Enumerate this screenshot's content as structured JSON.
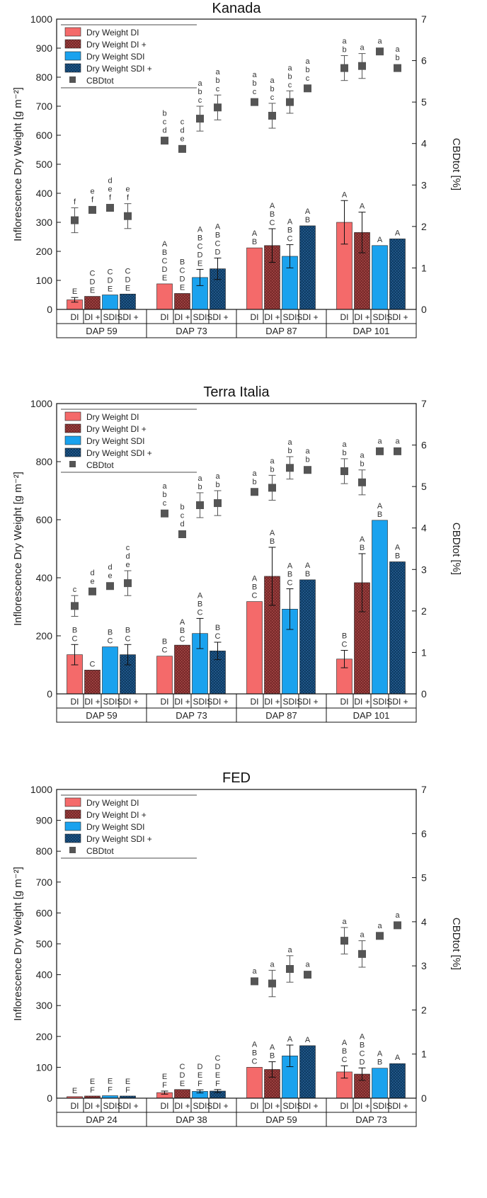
{
  "chart_data": [
    {
      "type": "bar",
      "title": "Kanada",
      "ylabel": "Inflorescence Dry Weight [g m⁻²]",
      "y2label": "CBDtot [%]",
      "ylim": [
        0,
        1000
      ],
      "y2lim": [
        0,
        7
      ],
      "yticks": [
        "0",
        "100",
        "200",
        "300",
        "400",
        "500",
        "600",
        "700",
        "800",
        "900",
        "1000"
      ],
      "y2ticks": [
        "0",
        "1",
        "2",
        "3",
        "4",
        "5",
        "6",
        "7"
      ],
      "categories": [
        "DI",
        "DI +",
        "SDI",
        "SDI +"
      ],
      "groups": [
        "DAP 59",
        "DAP 73",
        "DAP 87",
        "DAP 101"
      ],
      "legend_position": "top-left",
      "legend": [
        "Dry Weight DI",
        "Dry Weight DI +",
        "Dry Weight SDI",
        "Dry Weight SDI +",
        "CBDtot"
      ],
      "series": [
        {
          "name": "Dry Weight DI",
          "color": "#f46a6a",
          "values": [
            33,
            88,
            212,
            300
          ],
          "errors": [
            8,
            0,
            0,
            75
          ]
        },
        {
          "name": "Dry Weight DI +",
          "color": "#7a2a2a",
          "values": [
            45,
            55,
            220,
            265
          ],
          "errors": [
            0,
            0,
            58,
            70
          ]
        },
        {
          "name": "Dry Weight SDI",
          "color": "#1aa2ee",
          "values": [
            50,
            110,
            183,
            220
          ],
          "errors": [
            0,
            28,
            40,
            0
          ]
        },
        {
          "name": "Dry Weight SDI +",
          "color": "#0f3d66",
          "values": [
            53,
            140,
            288,
            243
          ],
          "errors": [
            0,
            37,
            0,
            0
          ]
        }
      ],
      "cbd": {
        "name": "CBDtot",
        "color": "#555555",
        "values": [
          [
            2.15,
            2.4,
            2.45,
            2.25
          ],
          [
            4.07,
            3.87,
            4.6,
            4.87
          ],
          [
            5.0,
            4.67,
            5.0,
            5.33
          ],
          [
            5.82,
            5.87,
            6.22,
            5.82
          ]
        ],
        "errors": [
          [
            0.3,
            0,
            0,
            0.3
          ],
          [
            0,
            0,
            0.3,
            0.3
          ],
          [
            0,
            0.3,
            0.27,
            0
          ],
          [
            0.3,
            0.3,
            0,
            0
          ]
        ]
      },
      "bar_letters": [
        [
          "E",
          "C D E",
          "C D E",
          "C D E"
        ],
        [
          "A B C D E",
          "B C D E",
          "A B C D E",
          "A B C D"
        ],
        [
          "A B",
          "A B C",
          "A B C",
          "A B"
        ],
        [
          "A",
          "A",
          "A",
          "A"
        ]
      ],
      "cbd_letters": [
        [
          "f",
          "e f",
          "d e f",
          "e f"
        ],
        [
          "b c d",
          "c d e",
          "a b c",
          "a b c"
        ],
        [
          "a b c",
          "a b c",
          "a b c",
          "a b c"
        ],
        [
          "a b",
          "a",
          "a",
          "a b"
        ]
      ]
    },
    {
      "type": "bar",
      "title": "Terra Italia",
      "ylabel": "Inflorescence Dry Weight [g m⁻²]",
      "y2label": "CBDtot [%]",
      "ylim": [
        0,
        1000
      ],
      "y2lim": [
        0,
        7
      ],
      "yticks": [
        "0",
        "200",
        "400",
        "600",
        "800",
        "1000"
      ],
      "y2ticks": [
        "0",
        "1",
        "2",
        "3",
        "4",
        "5",
        "6",
        "7"
      ],
      "categories": [
        "DI",
        "DI +",
        "SDI",
        "SDI +"
      ],
      "groups": [
        "DAP 59",
        "DAP 73",
        "DAP 87",
        "DAP 101"
      ],
      "legend_position": "top-left",
      "legend": [
        "Dry Weight DI",
        "Dry Weight DI +",
        "Dry Weight SDI",
        "Dry Weight SDI +",
        "CBDtot"
      ],
      "series": [
        {
          "name": "Dry Weight DI",
          "color": "#f46a6a",
          "values": [
            135,
            130,
            318,
            120
          ],
          "errors": [
            35,
            0,
            0,
            30
          ]
        },
        {
          "name": "Dry Weight DI +",
          "color": "#7a2a2a",
          "values": [
            82,
            168,
            405,
            383
          ],
          "errors": [
            0,
            0,
            100,
            100
          ]
        },
        {
          "name": "Dry Weight SDI",
          "color": "#1aa2ee",
          "values": [
            162,
            208,
            292,
            598
          ],
          "errors": [
            0,
            52,
            70,
            0
          ]
        },
        {
          "name": "Dry Weight SDI +",
          "color": "#0f3d66",
          "values": [
            135,
            148,
            393,
            455
          ],
          "errors": [
            35,
            30,
            0,
            0
          ]
        }
      ],
      "cbd": {
        "name": "CBDtot",
        "color": "#555555",
        "values": [
          [
            2.12,
            2.47,
            2.6,
            2.67
          ],
          [
            4.35,
            3.85,
            4.55,
            4.6
          ],
          [
            4.87,
            4.97,
            5.45,
            5.4
          ],
          [
            5.37,
            5.1,
            5.85,
            5.85
          ]
        ],
        "errors": [
          [
            0.25,
            0,
            0,
            0.3
          ],
          [
            0,
            0,
            0.3,
            0.3
          ],
          [
            0,
            0.3,
            0.27,
            0
          ],
          [
            0.3,
            0.3,
            0,
            0
          ]
        ]
      },
      "bar_letters": [
        [
          "B C",
          "C",
          "B C",
          "B C"
        ],
        [
          "B C",
          "A B C",
          "A B C",
          "B C"
        ],
        [
          "A B C",
          "A B",
          "A B C",
          "A B"
        ],
        [
          "B C",
          "A B",
          "A B",
          "A B"
        ]
      ],
      "cbd_letters": [
        [
          "c",
          "d e",
          "d e",
          "c d e"
        ],
        [
          "a b c",
          "b c d",
          "a b",
          "a b"
        ],
        [
          "a b",
          "a b",
          "a b",
          "a b"
        ],
        [
          "a b",
          "a b",
          "a",
          "a"
        ]
      ]
    },
    {
      "type": "bar",
      "title": "FED",
      "ylabel": "Inflorescence Dry Weight [g m⁻²]",
      "y2label": "CBDtot [%]",
      "ylim": [
        0,
        1000
      ],
      "y2lim": [
        0,
        7
      ],
      "yticks": [
        "0",
        "100",
        "200",
        "300",
        "400",
        "500",
        "600",
        "700",
        "800",
        "900",
        "1000"
      ],
      "y2ticks": [
        "0",
        "1",
        "2",
        "3",
        "4",
        "5",
        "6",
        "7"
      ],
      "categories": [
        "DI",
        "DI +",
        "SDI",
        "SDI +"
      ],
      "groups": [
        "DAP 24",
        "DAP 38",
        "DAP 59",
        "DAP 73"
      ],
      "legend_position": "top-left",
      "legend": [
        "Dry Weight DI",
        "Dry Weight DI +",
        "Dry Weight SDI",
        "Dry Weight SDI +",
        "CBDtot"
      ],
      "series": [
        {
          "name": "Dry Weight DI",
          "color": "#f46a6a",
          "values": [
            5,
            18,
            100,
            85
          ],
          "errors": [
            0,
            5,
            0,
            20
          ]
        },
        {
          "name": "Dry Weight DI +",
          "color": "#7a2a2a",
          "values": [
            7,
            28,
            93,
            78
          ],
          "errors": [
            0,
            0,
            25,
            20
          ]
        },
        {
          "name": "Dry Weight SDI",
          "color": "#1aa2ee",
          "values": [
            8,
            22,
            137,
            97
          ],
          "errors": [
            0,
            5,
            35,
            0
          ]
        },
        {
          "name": "Dry Weight SDI +",
          "color": "#0f3d66",
          "values": [
            7,
            23,
            170,
            112
          ],
          "errors": [
            0,
            5,
            0,
            0
          ]
        }
      ],
      "cbd": {
        "name": "CBDtot",
        "color": "#555555",
        "values": [
          [
            null,
            null,
            null,
            null
          ],
          [
            null,
            null,
            null,
            null
          ],
          [
            2.65,
            2.6,
            2.93,
            2.8
          ],
          [
            3.57,
            3.27,
            3.68,
            3.92
          ]
        ],
        "errors": [
          [
            0,
            0,
            0,
            0
          ],
          [
            0,
            0,
            0,
            0
          ],
          [
            0,
            0.3,
            0.3,
            0
          ],
          [
            0.3,
            0.3,
            0,
            0
          ]
        ]
      },
      "bar_letters": [
        [
          "E",
          "E F",
          "E F",
          "E F"
        ],
        [
          "E F",
          "C D E",
          "D E F",
          "C D E F"
        ],
        [
          "A B C",
          "A B",
          "A",
          "A"
        ],
        [
          "A B C",
          "A B C D",
          "A B",
          "A"
        ]
      ],
      "cbd_letters": [
        [
          "",
          "",
          "",
          ""
        ],
        [
          "",
          "",
          "",
          ""
        ],
        [
          "a",
          "a",
          "a",
          "a"
        ],
        [
          "a",
          "a",
          "a",
          "a"
        ]
      ]
    }
  ]
}
